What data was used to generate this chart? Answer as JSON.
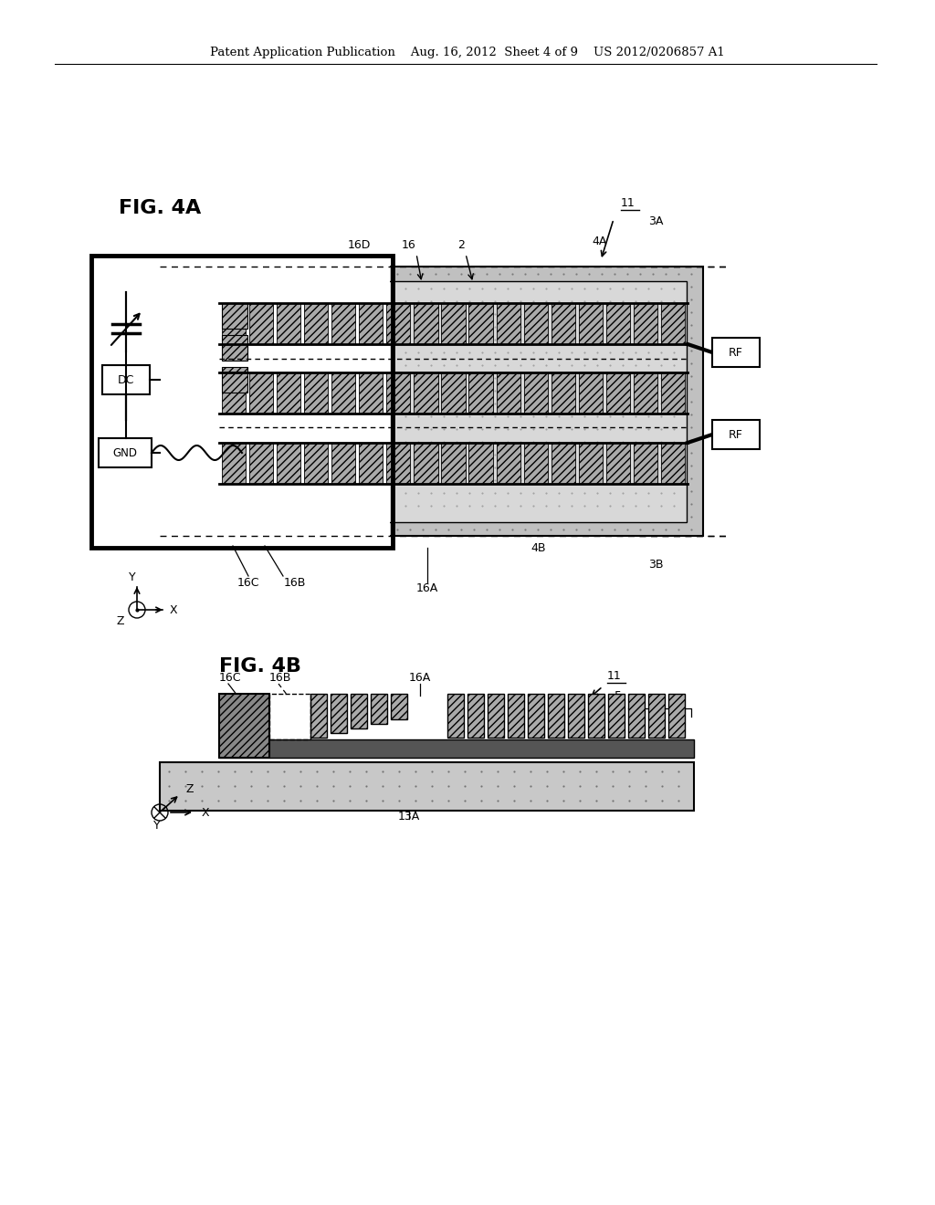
{
  "bg_color": "#ffffff",
  "header": "Patent Application Publication    Aug. 16, 2012  Sheet 4 of 9    US 2012/0206857 A1",
  "fig4a_label": "FIG. 4A",
  "fig4b_label": "FIG. 4B",
  "stipple_color": "#b8b8b8",
  "dark_gray": "#888888",
  "medium_gray": "#aaaaaa",
  "light_gray": "#d4d4d4",
  "hatch_gray": "#999999",
  "white": "#ffffff",
  "black": "#000000"
}
